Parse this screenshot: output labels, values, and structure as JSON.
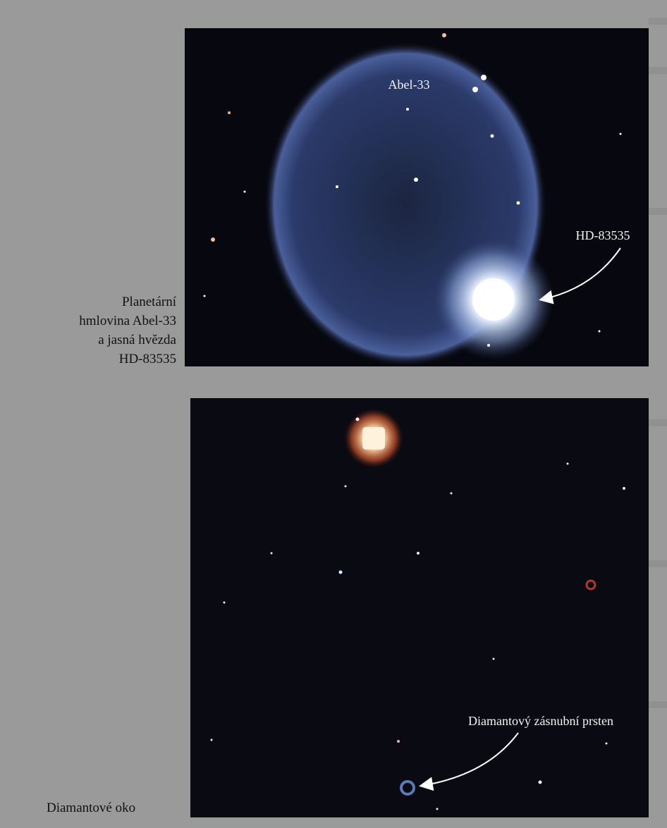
{
  "captions": {
    "top": [
      "Planetární",
      "hmlovina Abel-33",
      "a jasná hvězda",
      "HD-83535"
    ],
    "bottom": "Diamantové oko"
  },
  "images": {
    "top": {
      "labels": [
        "Abel-33",
        "HD-83535"
      ]
    },
    "bottom": {
      "labels": [
        "Diamantový zásnubní prsten"
      ]
    }
  }
}
